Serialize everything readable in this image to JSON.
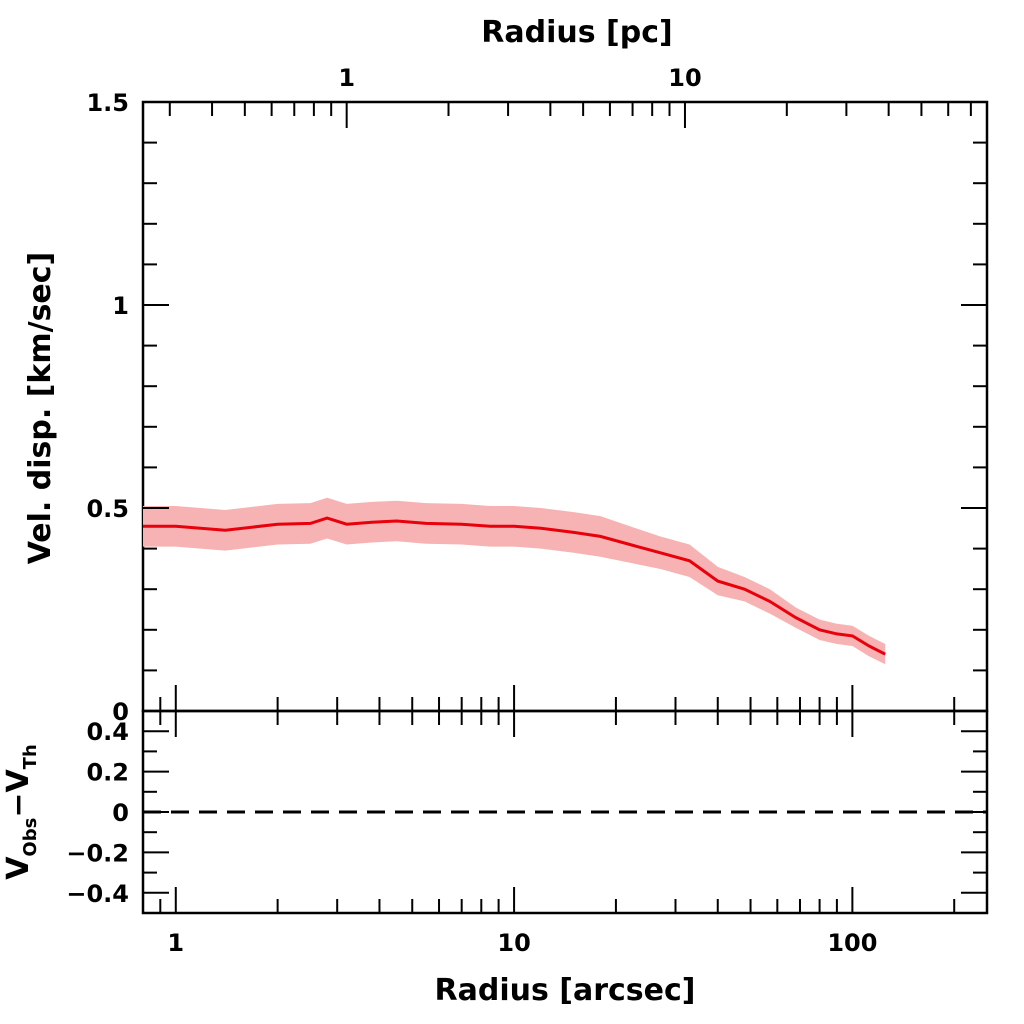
{
  "chart_data": [
    {
      "type": "line",
      "panel": "top",
      "xlabel_top": "Radius [pc]",
      "ylabel": "Vel. disp. [km/sec]",
      "xscale": "log",
      "xlim": [
        0.8,
        250
      ],
      "ylim": [
        0,
        1.5
      ],
      "top_axis_ticks": [
        "1",
        "10"
      ],
      "y_tick_labels": [
        "0",
        "0.5",
        "1",
        "1.5"
      ],
      "series": [
        {
          "color": "#e8000b",
          "band_color": "#f7b2b4",
          "x": [
            0.8,
            1.0,
            1.4,
            2.0,
            2.5,
            2.8,
            3.2,
            3.8,
            4.5,
            5.5,
            7.0,
            8.5,
            10,
            12,
            15,
            18,
            22,
            27,
            33,
            40,
            48,
            57,
            68,
            80,
            90,
            100,
            112,
            125
          ],
          "y": [
            0.455,
            0.455,
            0.445,
            0.46,
            0.462,
            0.475,
            0.46,
            0.465,
            0.468,
            0.462,
            0.46,
            0.455,
            0.455,
            0.45,
            0.44,
            0.43,
            0.41,
            0.39,
            0.37,
            0.32,
            0.3,
            0.27,
            0.23,
            0.2,
            0.19,
            0.185,
            0.16,
            0.14
          ],
          "err": [
            0.05,
            0.05,
            0.05,
            0.05,
            0.05,
            0.05,
            0.05,
            0.05,
            0.05,
            0.05,
            0.05,
            0.05,
            0.05,
            0.05,
            0.05,
            0.05,
            0.045,
            0.04,
            0.04,
            0.035,
            0.03,
            0.03,
            0.025,
            0.025,
            0.025,
            0.025,
            0.025,
            0.025
          ]
        }
      ]
    },
    {
      "type": "line",
      "panel": "bottom",
      "xlabel": "Radius [arcsec]",
      "ylabel_main": "V",
      "ylabel_sub1": "Obs",
      "ylabel_mid": "−V",
      "ylabel_sub2": "Th",
      "xscale": "log",
      "xlim": [
        0.8,
        250
      ],
      "ylim": [
        -0.5,
        0.5
      ],
      "x_tick_labels": [
        "1",
        "10",
        "100"
      ],
      "y_tick_labels": [
        "0.4",
        "0.2",
        "0",
        "−0.2",
        "−0.4"
      ],
      "series": [
        {
          "style": "dashed",
          "color": "#000000",
          "x": [
            0.8,
            250
          ],
          "y": [
            0,
            0
          ]
        }
      ]
    }
  ]
}
